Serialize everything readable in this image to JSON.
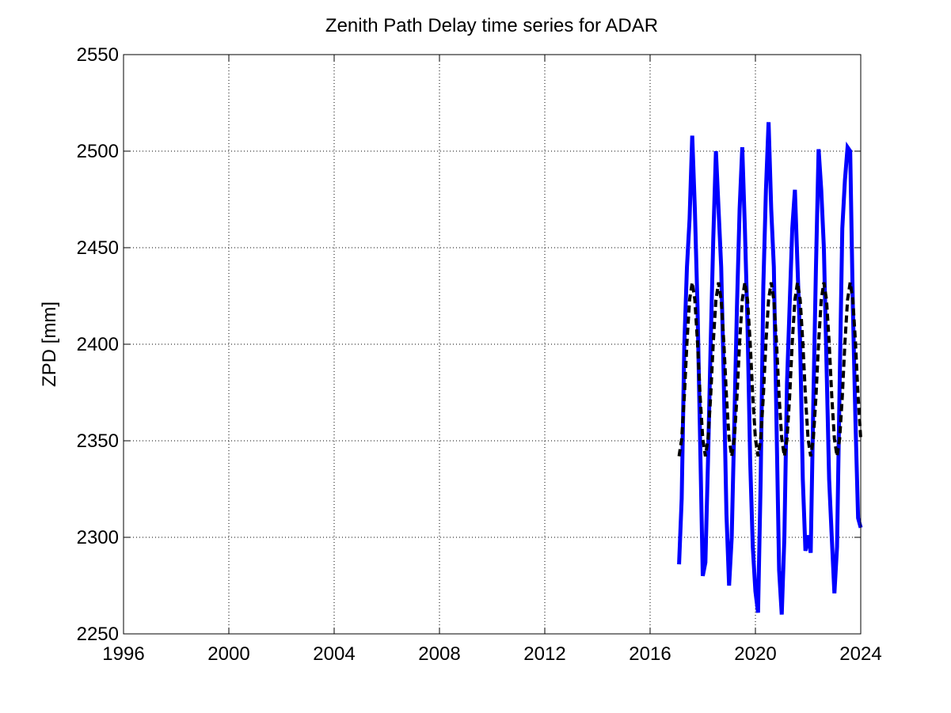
{
  "chart_data": {
    "type": "line",
    "title": "Zenith Path Delay time series for ADAR",
    "y_label": "ZPD [mm]",
    "x": [
      2017.1,
      2017.2,
      2017.3,
      2017.4,
      2017.5,
      2017.6,
      2017.7,
      2017.8,
      2017.9,
      2018.0,
      2018.1,
      2018.2,
      2018.3,
      2018.4,
      2018.5,
      2018.6,
      2018.7,
      2018.8,
      2018.9,
      2019.0,
      2019.1,
      2019.2,
      2019.3,
      2019.4,
      2019.5,
      2019.6,
      2019.7,
      2019.8,
      2019.9,
      2020.0,
      2020.1,
      2020.2,
      2020.3,
      2020.4,
      2020.5,
      2020.6,
      2020.7,
      2020.8,
      2020.9,
      2021.0,
      2021.1,
      2021.2,
      2021.3,
      2021.4,
      2021.5,
      2021.6,
      2021.7,
      2021.8,
      2021.9,
      2022.0,
      2022.1,
      2022.2,
      2022.3,
      2022.4,
      2022.5,
      2022.6,
      2022.7,
      2022.8,
      2022.9,
      2023.0,
      2023.1,
      2023.2,
      2023.3,
      2023.4,
      2023.5,
      2023.6,
      2023.7,
      2023.8,
      2023.9,
      2024.0
    ],
    "series": [
      {
        "color": "#0000ff",
        "line_style": "solid",
        "values": [
          2286,
          2320,
          2400,
          2440,
          2465,
          2508,
          2470,
          2420,
          2350,
          2280,
          2287,
          2340,
          2400,
          2455,
          2500,
          2470,
          2440,
          2380,
          2312,
          2275,
          2300,
          2360,
          2420,
          2470,
          2502,
          2460,
          2410,
          2340,
          2295,
          2272,
          2261,
          2330,
          2430,
          2480,
          2515,
          2470,
          2440,
          2360,
          2283,
          2260,
          2300,
          2380,
          2420,
          2460,
          2480,
          2440,
          2400,
          2330,
          2293,
          2301,
          2292,
          2370,
          2440,
          2501,
          2480,
          2450,
          2390,
          2330,
          2300,
          2271,
          2295,
          2380,
          2460,
          2485,
          2502,
          2500,
          2420,
          2360,
          2310,
          2305
        ]
      },
      {
        "color": "#000000",
        "line_style": "dashed",
        "values": [
          2342,
          2351,
          2373,
          2401,
          2423,
          2432,
          2423,
          2401,
          2373,
          2351,
          2342,
          2351,
          2373,
          2401,
          2423,
          2432,
          2423,
          2401,
          2373,
          2351,
          2342,
          2351,
          2373,
          2401,
          2423,
          2432,
          2423,
          2401,
          2373,
          2351,
          2342,
          2351,
          2373,
          2401,
          2423,
          2432,
          2423,
          2401,
          2373,
          2351,
          2342,
          2351,
          2373,
          2401,
          2423,
          2432,
          2423,
          2401,
          2373,
          2351,
          2342,
          2351,
          2373,
          2401,
          2423,
          2432,
          2423,
          2401,
          2373,
          2351,
          2342,
          2351,
          2373,
          2401,
          2423,
          2432,
          2423,
          2401,
          2373,
          2351
        ]
      }
    ],
    "xlim": [
      1996,
      2024
    ],
    "xticks": [
      1996,
      2000,
      2004,
      2008,
      2012,
      2016,
      2020,
      2024
    ],
    "ylim": [
      2250,
      2550
    ],
    "yticks": [
      2250,
      2300,
      2350,
      2400,
      2450,
      2500,
      2550
    ],
    "grid": true
  }
}
